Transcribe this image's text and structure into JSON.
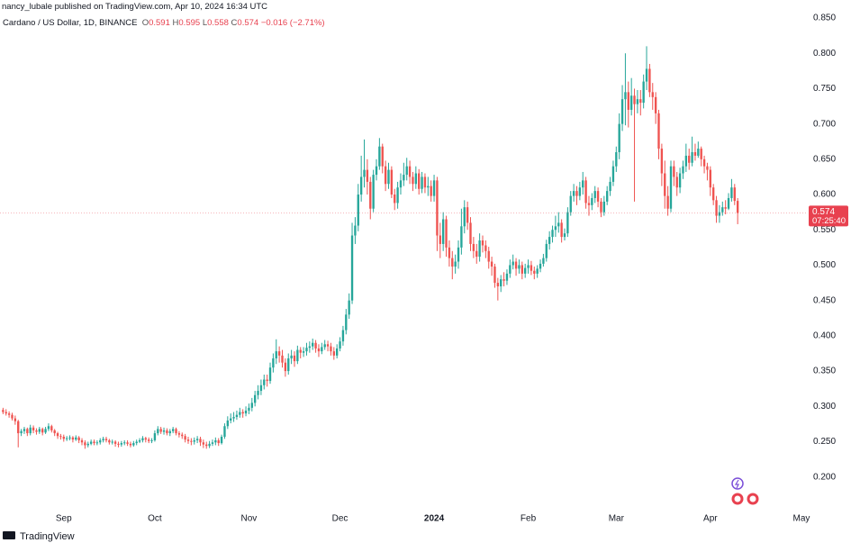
{
  "header": {
    "published": "nancy_lubale published on TradingView.com, Apr 10, 2024 16:34 UTC",
    "symbol": "Cardano / US Dollar, 1D, BINANCE",
    "open_label": "O",
    "open": 0.591,
    "high_label": "H",
    "high": 0.595,
    "low_label": "L",
    "low": 0.558,
    "close_label": "C",
    "close": 0.574,
    "change": "−0.016 (−2.71%)"
  },
  "footer": {
    "logo": "TradingView"
  },
  "chart_data": {
    "type": "candlestick",
    "up_color": "#26a69a",
    "down_color": "#ef5350",
    "grid": false,
    "last_price": 0.574,
    "countdown": "07:25:40",
    "xlim": [
      -1,
      264.5
    ],
    "xticks": [
      {
        "value": 20,
        "label": "Sep"
      },
      {
        "value": 50,
        "label": "Oct"
      },
      {
        "value": 81,
        "label": "Nov"
      },
      {
        "value": 111,
        "label": "Dec"
      },
      {
        "value": 142,
        "label": "2024"
      },
      {
        "value": 173,
        "label": "Feb"
      },
      {
        "value": 202,
        "label": "Mar"
      },
      {
        "value": 233,
        "label": "Apr"
      },
      {
        "value": 263,
        "label": "May"
      }
    ],
    "ylim": [
      0.155,
      0.8755
    ],
    "yticks": [
      {
        "value": 0.2,
        "label": "0.200"
      },
      {
        "value": 0.25,
        "label": "0.250"
      },
      {
        "value": 0.3,
        "label": "0.300"
      },
      {
        "value": 0.35,
        "label": "0.350"
      },
      {
        "value": 0.4,
        "label": "0.400"
      },
      {
        "value": 0.45,
        "label": "0.450"
      },
      {
        "value": 0.5,
        "label": "0.500"
      },
      {
        "value": 0.55,
        "label": "0.550"
      },
      {
        "value": 0.6,
        "label": "0.600"
      },
      {
        "value": 0.65,
        "label": "0.650"
      },
      {
        "value": 0.7,
        "label": "0.700"
      },
      {
        "value": 0.75,
        "label": "0.750"
      },
      {
        "value": 0.8,
        "label": "0.800"
      },
      {
        "value": 0.85,
        "label": "0.850"
      }
    ],
    "open": [
      0.295,
      0.292,
      0.29,
      0.288,
      0.283,
      0.279,
      0.262,
      0.265,
      0.268,
      0.262,
      0.27,
      0.266,
      0.264,
      0.268,
      0.263,
      0.268,
      0.272,
      0.266,
      0.262,
      0.258,
      0.257,
      0.254,
      0.255,
      0.256,
      0.253,
      0.256,
      0.252,
      0.249,
      0.245,
      0.247,
      0.25,
      0.248,
      0.249,
      0.252,
      0.254,
      0.252,
      0.249,
      0.25,
      0.247,
      0.246,
      0.248,
      0.249,
      0.247,
      0.245,
      0.248,
      0.25,
      0.252,
      0.255,
      0.253,
      0.251,
      0.252,
      0.262,
      0.268,
      0.264,
      0.266,
      0.262,
      0.265,
      0.268,
      0.262,
      0.26,
      0.258,
      0.253,
      0.251,
      0.25,
      0.252,
      0.254,
      0.249,
      0.246,
      0.244,
      0.247,
      0.249,
      0.252,
      0.248,
      0.257,
      0.272,
      0.28,
      0.283,
      0.285,
      0.288,
      0.292,
      0.29,
      0.294,
      0.298,
      0.305,
      0.316,
      0.322,
      0.33,
      0.338,
      0.336,
      0.355,
      0.368,
      0.378,
      0.372,
      0.362,
      0.35,
      0.368,
      0.372,
      0.364,
      0.38,
      0.376,
      0.378,
      0.383,
      0.385,
      0.39,
      0.382,
      0.378,
      0.384,
      0.388,
      0.385,
      0.378,
      0.372,
      0.382,
      0.392,
      0.408,
      0.43,
      0.45,
      0.542,
      0.556,
      0.6,
      0.625,
      0.635,
      0.618,
      0.58,
      0.628,
      0.64,
      0.668,
      0.64,
      0.615,
      0.635,
      0.6,
      0.588,
      0.61,
      0.62,
      0.628,
      0.64,
      0.625,
      0.615,
      0.63,
      0.608,
      0.625,
      0.61,
      0.612,
      0.598,
      0.62,
      0.542,
      0.53,
      0.565,
      0.525,
      0.51,
      0.498,
      0.505,
      0.525,
      0.555,
      0.582,
      0.56,
      0.53,
      0.52,
      0.512,
      0.535,
      0.528,
      0.52,
      0.505,
      0.498,
      0.475,
      0.47,
      0.48,
      0.478,
      0.488,
      0.5,
      0.505,
      0.495,
      0.5,
      0.488,
      0.496,
      0.5,
      0.492,
      0.488,
      0.495,
      0.502,
      0.51,
      0.53,
      0.54,
      0.55,
      0.555,
      0.56,
      0.54,
      0.545,
      0.575,
      0.598,
      0.605,
      0.598,
      0.61,
      0.62,
      0.588,
      0.585,
      0.595,
      0.605,
      0.59,
      0.575,
      0.59,
      0.605,
      0.618,
      0.64,
      0.66,
      0.7,
      0.735,
      0.745,
      0.72,
      0.74,
      0.728,
      0.735,
      0.73,
      0.76,
      0.778,
      0.745,
      0.738,
      0.715,
      0.665,
      0.63,
      0.598,
      0.58,
      0.64,
      0.625,
      0.61,
      0.63,
      0.64,
      0.655,
      0.645,
      0.66,
      0.655,
      0.665,
      0.65,
      0.64,
      0.635,
      0.61,
      0.592,
      0.57,
      0.575,
      0.582,
      0.58,
      0.595,
      0.61,
      0.591
    ],
    "high": [
      0.298,
      0.296,
      0.293,
      0.291,
      0.287,
      0.281,
      0.268,
      0.271,
      0.27,
      0.274,
      0.273,
      0.269,
      0.271,
      0.27,
      0.271,
      0.276,
      0.274,
      0.268,
      0.264,
      0.261,
      0.26,
      0.258,
      0.259,
      0.258,
      0.259,
      0.258,
      0.255,
      0.252,
      0.25,
      0.253,
      0.253,
      0.252,
      0.255,
      0.257,
      0.257,
      0.254,
      0.253,
      0.252,
      0.25,
      0.251,
      0.252,
      0.252,
      0.25,
      0.251,
      0.253,
      0.255,
      0.258,
      0.257,
      0.256,
      0.255,
      0.266,
      0.272,
      0.271,
      0.27,
      0.269,
      0.268,
      0.271,
      0.27,
      0.265,
      0.263,
      0.261,
      0.257,
      0.255,
      0.256,
      0.258,
      0.257,
      0.253,
      0.25,
      0.251,
      0.253,
      0.256,
      0.255,
      0.26,
      0.276,
      0.286,
      0.29,
      0.292,
      0.294,
      0.298,
      0.296,
      0.3,
      0.304,
      0.312,
      0.322,
      0.33,
      0.338,
      0.345,
      0.345,
      0.362,
      0.375,
      0.395,
      0.385,
      0.38,
      0.368,
      0.375,
      0.38,
      0.378,
      0.386,
      0.384,
      0.384,
      0.39,
      0.392,
      0.396,
      0.394,
      0.388,
      0.39,
      0.394,
      0.393,
      0.39,
      0.384,
      0.388,
      0.398,
      0.414,
      0.438,
      0.46,
      0.56,
      0.568,
      0.615,
      0.655,
      0.678,
      0.65,
      0.625,
      0.635,
      0.65,
      0.68,
      0.672,
      0.648,
      0.645,
      0.64,
      0.608,
      0.618,
      0.63,
      0.645,
      0.652,
      0.648,
      0.632,
      0.64,
      0.636,
      0.632,
      0.63,
      0.625,
      0.62,
      0.628,
      0.625,
      0.56,
      0.575,
      0.57,
      0.535,
      0.52,
      0.515,
      0.535,
      0.58,
      0.592,
      0.59,
      0.568,
      0.54,
      0.53,
      0.545,
      0.542,
      0.535,
      0.526,
      0.512,
      0.502,
      0.482,
      0.486,
      0.49,
      0.494,
      0.508,
      0.515,
      0.51,
      0.508,
      0.505,
      0.502,
      0.508,
      0.506,
      0.498,
      0.5,
      0.508,
      0.516,
      0.536,
      0.548,
      0.556,
      0.57,
      0.575,
      0.565,
      0.552,
      0.582,
      0.605,
      0.615,
      0.612,
      0.618,
      0.632,
      0.625,
      0.598,
      0.602,
      0.612,
      0.61,
      0.595,
      0.598,
      0.612,
      0.625,
      0.648,
      0.668,
      0.715,
      0.755,
      0.8,
      0.76,
      0.765,
      0.75,
      0.748,
      0.748,
      0.77,
      0.81,
      0.785,
      0.758,
      0.745,
      0.72,
      0.672,
      0.648,
      0.612,
      0.648,
      0.648,
      0.632,
      0.638,
      0.648,
      0.672,
      0.665,
      0.682,
      0.672,
      0.675,
      0.668,
      0.655,
      0.645,
      0.64,
      0.615,
      0.598,
      0.585,
      0.59,
      0.592,
      0.602,
      0.622,
      0.615,
      0.595
    ],
    "low": [
      0.289,
      0.287,
      0.284,
      0.28,
      0.274,
      0.242,
      0.258,
      0.261,
      0.258,
      0.259,
      0.262,
      0.26,
      0.261,
      0.259,
      0.261,
      0.265,
      0.263,
      0.258,
      0.254,
      0.253,
      0.25,
      0.251,
      0.252,
      0.249,
      0.251,
      0.248,
      0.245,
      0.24,
      0.242,
      0.245,
      0.245,
      0.245,
      0.246,
      0.249,
      0.249,
      0.246,
      0.246,
      0.243,
      0.242,
      0.243,
      0.245,
      0.244,
      0.242,
      0.243,
      0.245,
      0.248,
      0.249,
      0.249,
      0.248,
      0.248,
      0.25,
      0.259,
      0.261,
      0.26,
      0.259,
      0.258,
      0.262,
      0.259,
      0.256,
      0.254,
      0.249,
      0.247,
      0.245,
      0.246,
      0.248,
      0.244,
      0.241,
      0.24,
      0.241,
      0.244,
      0.245,
      0.244,
      0.246,
      0.254,
      0.268,
      0.276,
      0.278,
      0.281,
      0.284,
      0.284,
      0.286,
      0.289,
      0.293,
      0.3,
      0.31,
      0.316,
      0.324,
      0.328,
      0.332,
      0.348,
      0.36,
      0.362,
      0.355,
      0.342,
      0.345,
      0.36,
      0.356,
      0.36,
      0.368,
      0.37,
      0.372,
      0.376,
      0.38,
      0.376,
      0.37,
      0.374,
      0.38,
      0.378,
      0.372,
      0.366,
      0.368,
      0.378,
      0.386,
      0.402,
      0.424,
      0.445,
      0.53,
      0.548,
      0.59,
      0.61,
      0.6,
      0.565,
      0.575,
      0.62,
      0.635,
      0.63,
      0.605,
      0.608,
      0.595,
      0.578,
      0.58,
      0.6,
      0.612,
      0.62,
      0.615,
      0.605,
      0.608,
      0.6,
      0.602,
      0.602,
      0.598,
      0.59,
      0.59,
      0.52,
      0.51,
      0.52,
      0.512,
      0.498,
      0.48,
      0.488,
      0.495,
      0.515,
      0.545,
      0.55,
      0.52,
      0.51,
      0.502,
      0.505,
      0.518,
      0.51,
      0.495,
      0.485,
      0.468,
      0.45,
      0.462,
      0.47,
      0.472,
      0.482,
      0.494,
      0.485,
      0.488,
      0.48,
      0.482,
      0.488,
      0.486,
      0.48,
      0.482,
      0.49,
      0.498,
      0.505,
      0.522,
      0.532,
      0.54,
      0.546,
      0.532,
      0.535,
      0.54,
      0.57,
      0.59,
      0.585,
      0.592,
      0.6,
      0.58,
      0.57,
      0.578,
      0.588,
      0.582,
      0.568,
      0.57,
      0.585,
      0.598,
      0.612,
      0.632,
      0.65,
      0.69,
      0.698,
      0.695,
      0.712,
      0.59,
      0.715,
      0.712,
      0.722,
      0.748,
      0.738,
      0.72,
      0.7,
      0.65,
      0.612,
      0.58,
      0.57,
      0.575,
      0.612,
      0.598,
      0.602,
      0.622,
      0.632,
      0.635,
      0.64,
      0.648,
      0.652,
      0.64,
      0.63,
      0.62,
      0.598,
      0.585,
      0.56,
      0.56,
      0.57,
      0.572,
      0.578,
      0.59,
      0.585,
      0.558
    ],
    "close": [
      0.292,
      0.29,
      0.288,
      0.283,
      0.279,
      0.262,
      0.265,
      0.268,
      0.262,
      0.27,
      0.266,
      0.264,
      0.268,
      0.263,
      0.268,
      0.272,
      0.266,
      0.262,
      0.258,
      0.257,
      0.254,
      0.255,
      0.256,
      0.253,
      0.256,
      0.252,
      0.249,
      0.245,
      0.247,
      0.25,
      0.248,
      0.249,
      0.252,
      0.254,
      0.252,
      0.249,
      0.25,
      0.247,
      0.246,
      0.248,
      0.249,
      0.247,
      0.245,
      0.248,
      0.25,
      0.252,
      0.255,
      0.253,
      0.251,
      0.252,
      0.262,
      0.268,
      0.264,
      0.266,
      0.262,
      0.265,
      0.268,
      0.262,
      0.26,
      0.258,
      0.253,
      0.251,
      0.25,
      0.252,
      0.254,
      0.249,
      0.246,
      0.244,
      0.247,
      0.249,
      0.252,
      0.248,
      0.257,
      0.272,
      0.28,
      0.283,
      0.285,
      0.288,
      0.292,
      0.29,
      0.294,
      0.298,
      0.305,
      0.316,
      0.322,
      0.33,
      0.338,
      0.336,
      0.355,
      0.368,
      0.378,
      0.372,
      0.362,
      0.35,
      0.368,
      0.372,
      0.364,
      0.38,
      0.376,
      0.378,
      0.383,
      0.385,
      0.39,
      0.382,
      0.378,
      0.384,
      0.388,
      0.385,
      0.378,
      0.372,
      0.382,
      0.392,
      0.408,
      0.43,
      0.45,
      0.542,
      0.556,
      0.6,
      0.625,
      0.635,
      0.618,
      0.58,
      0.628,
      0.64,
      0.668,
      0.64,
      0.615,
      0.635,
      0.6,
      0.588,
      0.61,
      0.62,
      0.628,
      0.64,
      0.625,
      0.615,
      0.63,
      0.608,
      0.625,
      0.61,
      0.612,
      0.598,
      0.62,
      0.542,
      0.53,
      0.565,
      0.525,
      0.51,
      0.498,
      0.505,
      0.525,
      0.555,
      0.582,
      0.56,
      0.53,
      0.52,
      0.512,
      0.535,
      0.528,
      0.52,
      0.505,
      0.498,
      0.475,
      0.47,
      0.48,
      0.478,
      0.488,
      0.5,
      0.505,
      0.495,
      0.5,
      0.488,
      0.496,
      0.5,
      0.492,
      0.488,
      0.495,
      0.502,
      0.51,
      0.53,
      0.54,
      0.55,
      0.555,
      0.56,
      0.54,
      0.545,
      0.575,
      0.598,
      0.605,
      0.598,
      0.61,
      0.62,
      0.588,
      0.585,
      0.595,
      0.605,
      0.59,
      0.575,
      0.59,
      0.605,
      0.618,
      0.64,
      0.66,
      0.7,
      0.735,
      0.745,
      0.72,
      0.74,
      0.728,
      0.735,
      0.73,
      0.76,
      0.778,
      0.745,
      0.738,
      0.715,
      0.665,
      0.63,
      0.598,
      0.58,
      0.64,
      0.625,
      0.61,
      0.63,
      0.64,
      0.655,
      0.645,
      0.66,
      0.655,
      0.665,
      0.65,
      0.64,
      0.635,
      0.61,
      0.592,
      0.57,
      0.575,
      0.582,
      0.58,
      0.595,
      0.61,
      0.591,
      0.574
    ]
  }
}
